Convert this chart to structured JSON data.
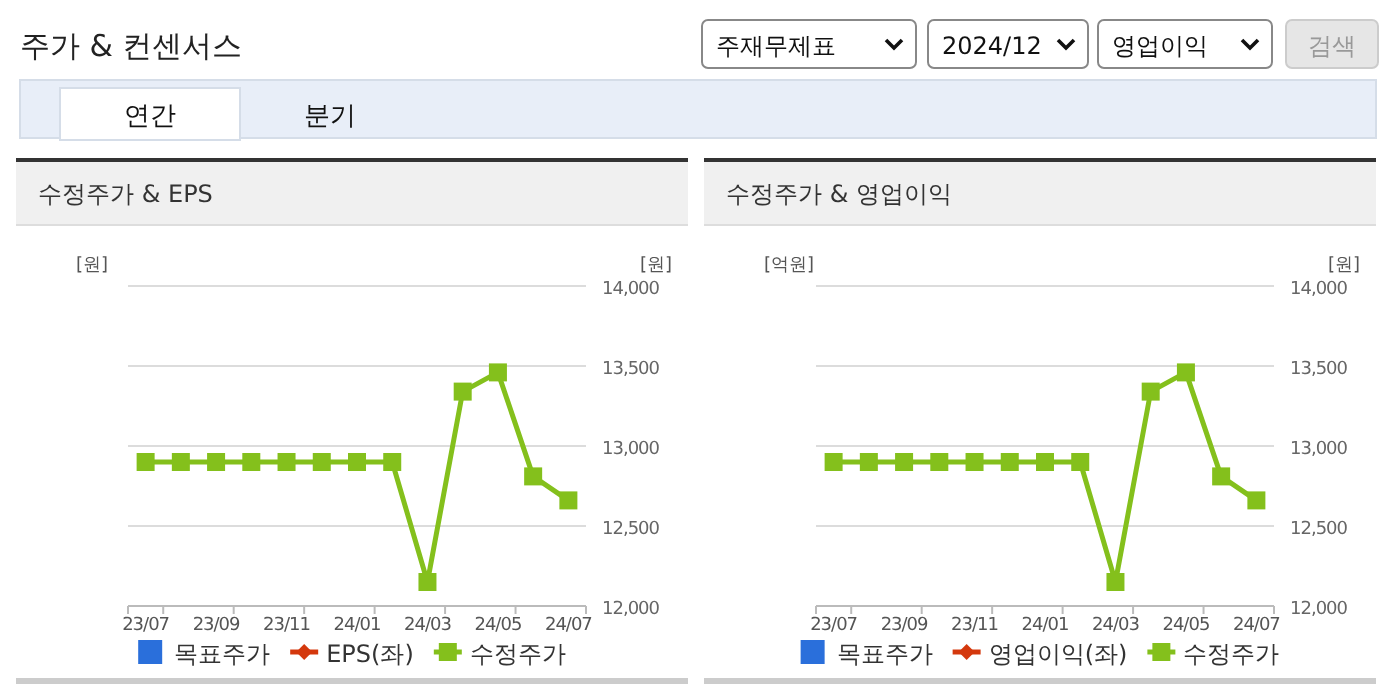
{
  "chart_data": [
    {
      "type": "other",
      "title": "주가 & 컨센서스",
      "annotations": [
        "주재무제표",
        "2024/12",
        "영업이익",
        "검색",
        "연간",
        "분기"
      ]
    },
    {
      "type": "line",
      "title": "수정주가 & EPS",
      "ylabel": "[원]",
      "y2label": "[원]",
      "categories": [
        "23/07",
        null,
        "23/09",
        null,
        "23/11",
        null,
        "24/01",
        null,
        "24/03",
        null,
        "24/05",
        null,
        "24/07"
      ],
      "y2lim": [
        12000,
        14000
      ],
      "y2ticks": [
        {
          "value": 12000,
          "label": "12,000"
        },
        {
          "value": 12500,
          "label": "12,500"
        },
        {
          "value": 13000,
          "label": "13,000"
        },
        {
          "value": 13500,
          "label": "13,500"
        },
        {
          "value": 14000,
          "label": "14,000"
        }
      ],
      "grid": "y",
      "legend": "bottom",
      "series": [
        {
          "name": "목표주가",
          "type": "bar",
          "color": "#2a6fdb",
          "values": [
            null,
            null,
            null,
            null,
            null,
            null,
            null,
            null,
            null,
            null,
            null,
            null,
            null
          ]
        },
        {
          "name": "EPS(좌)",
          "type": "line",
          "marker": "diamond",
          "color": "#d4380d",
          "values": [
            null,
            null,
            null,
            null,
            null,
            null,
            null,
            null,
            null,
            null,
            null,
            null,
            null
          ]
        },
        {
          "name": "수정주가",
          "type": "line",
          "marker": "square",
          "axis": "y2",
          "color": "#84c01c",
          "values": [
            12900,
            12900,
            12900,
            12900,
            12900,
            12900,
            12900,
            12900,
            12150,
            13340,
            13460,
            12810,
            12660
          ]
        }
      ]
    },
    {
      "type": "line",
      "title": "수정주가 & 영업이익",
      "ylabel": "[억원]",
      "y2label": "[원]",
      "categories": [
        "23/07",
        null,
        "23/09",
        null,
        "23/11",
        null,
        "24/01",
        null,
        "24/03",
        null,
        "24/05",
        null,
        "24/07"
      ],
      "y2lim": [
        12000,
        14000
      ],
      "y2ticks": [
        {
          "value": 12000,
          "label": "12,000"
        },
        {
          "value": 12500,
          "label": "12,500"
        },
        {
          "value": 13000,
          "label": "13,000"
        },
        {
          "value": 13500,
          "label": "13,500"
        },
        {
          "value": 14000,
          "label": "14,000"
        }
      ],
      "grid": "y",
      "legend": "bottom",
      "series": [
        {
          "name": "목표주가",
          "type": "bar",
          "color": "#2a6fdb",
          "values": [
            null,
            null,
            null,
            null,
            null,
            null,
            null,
            null,
            null,
            null,
            null,
            null,
            null
          ]
        },
        {
          "name": "영업이익(좌)",
          "type": "line",
          "marker": "diamond",
          "color": "#d4380d",
          "values": [
            null,
            null,
            null,
            null,
            null,
            null,
            null,
            null,
            null,
            null,
            null,
            null,
            null
          ]
        },
        {
          "name": "수정주가",
          "type": "line",
          "marker": "square",
          "axis": "y2",
          "color": "#84c01c",
          "values": [
            12900,
            12900,
            12900,
            12900,
            12900,
            12900,
            12900,
            12900,
            12150,
            13340,
            13460,
            12810,
            12660
          ]
        }
      ]
    }
  ]
}
